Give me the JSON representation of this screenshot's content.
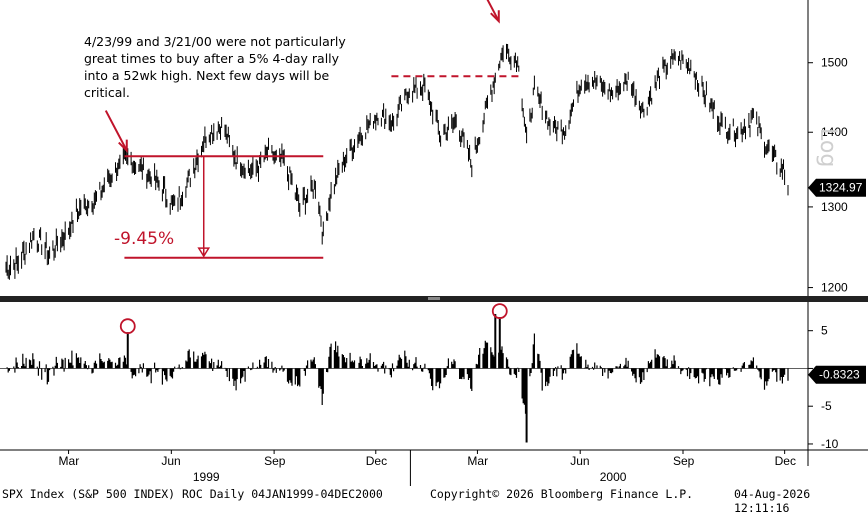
{
  "annotation": {
    "note": "4/23/99 and 3/21/00 were not particularly great times to buy after a 5% 4-day rally into a 52wk high. Next few days will be critical.",
    "drop_label": "-9.45%"
  },
  "axis": {
    "log_label": "Log",
    "x_months": [
      "Mar",
      "Jun",
      "Sep",
      "Dec",
      "Mar",
      "Jun",
      "Sep",
      "Dec"
    ],
    "x_years": [
      "1999",
      "2000"
    ]
  },
  "footer": {
    "left": "SPX Index (S&P 500 INDEX) ROC Daily 04JAN1999-04DEC2000",
    "center": "Copyright© 2026 Bloomberg Finance L.P.",
    "right": "04-Aug-2026 12:11:16"
  },
  "colors": {
    "annotation": "#c0142b",
    "bars": "#000000",
    "panel_divider": "#222222"
  },
  "chart_data": [
    {
      "type": "line",
      "title": "",
      "series": [
        {
          "name": "SPX Index",
          "x": [
            "1999-01-04",
            "1999-01-15",
            "1999-01-29",
            "1999-02-12",
            "1999-02-26",
            "1999-03-12",
            "1999-03-26",
            "1999-04-09",
            "1999-04-23",
            "1999-05-07",
            "1999-05-21",
            "1999-06-04",
            "1999-06-18",
            "1999-07-02",
            "1999-07-16",
            "1999-07-30",
            "1999-08-13",
            "1999-08-27",
            "1999-09-10",
            "1999-09-24",
            "1999-10-08",
            "1999-10-15",
            "1999-10-22",
            "1999-11-05",
            "1999-11-19",
            "1999-12-03",
            "1999-12-17",
            "1999-12-31",
            "2000-01-14",
            "2000-01-28",
            "2000-02-11",
            "2000-02-25",
            "2000-03-10",
            "2000-03-24",
            "2000-04-07",
            "2000-04-14",
            "2000-04-21",
            "2000-05-05",
            "2000-05-19",
            "2000-06-02",
            "2000-06-16",
            "2000-06-30",
            "2000-07-14",
            "2000-07-28",
            "2000-08-11",
            "2000-08-25",
            "2000-09-08",
            "2000-09-22",
            "2000-10-06",
            "2000-10-20",
            "2000-11-03",
            "2000-11-17",
            "2000-12-01",
            "2000-12-04"
          ],
          "values": [
            1225,
            1230,
            1265,
            1240,
            1265,
            1300,
            1310,
            1345,
            1362,
            1350,
            1330,
            1300,
            1340,
            1395,
            1410,
            1360,
            1345,
            1370,
            1360,
            1300,
            1330,
            1265,
            1320,
            1370,
            1400,
            1425,
            1415,
            1460,
            1465,
            1395,
            1415,
            1355,
            1440,
            1520,
            1500,
            1385,
            1460,
            1410,
            1405,
            1475,
            1470,
            1455,
            1475,
            1430,
            1480,
            1510,
            1495,
            1450,
            1410,
            1400,
            1420,
            1375,
            1345,
            1325
          ]
        }
      ],
      "ylabel": "",
      "xlabel": "",
      "yticks": [
        1200,
        1300,
        1400,
        1500
      ],
      "ylim": [
        1190,
        1590
      ],
      "xlim": [
        "1999-01-04",
        "2000-12-04"
      ],
      "y_scale": "log",
      "last_value_label": "1324.97",
      "reference_lines": [
        {
          "y": 1367,
          "from": "1999-04-20",
          "to": "1999-10-15",
          "style": "solid"
        },
        {
          "y": 1236,
          "from": "1999-04-20",
          "to": "1999-10-15",
          "style": "solid"
        },
        {
          "y": 1480,
          "from": "1999-12-15",
          "to": "2000-04-10",
          "style": "dashed"
        }
      ],
      "callouts": [
        {
          "x": "1999-04-23"
        },
        {
          "x": "2000-03-21"
        }
      ]
    },
    {
      "type": "bar",
      "title": "",
      "series": [
        {
          "name": "ROC",
          "values_note": "daily rate of change, approx. -10 to +8"
        }
      ],
      "yticks": [
        5,
        0,
        -5,
        -10
      ],
      "ylim": [
        -10.8,
        8.8
      ],
      "last_value_label": "-0.8323",
      "x_domain": [
        "1999-01-04",
        "2000-12-04"
      ],
      "peaks": [
        {
          "x": "1999-04-23",
          "value": 4.8
        },
        {
          "x": "2000-03-17",
          "value": 7.2
        },
        {
          "x": "2000-03-21",
          "value": 6.8
        },
        {
          "x": "2000-04-14",
          "value": -9.8
        }
      ],
      "circled": [
        "1999-04-23",
        "2000-03-21"
      ]
    }
  ]
}
